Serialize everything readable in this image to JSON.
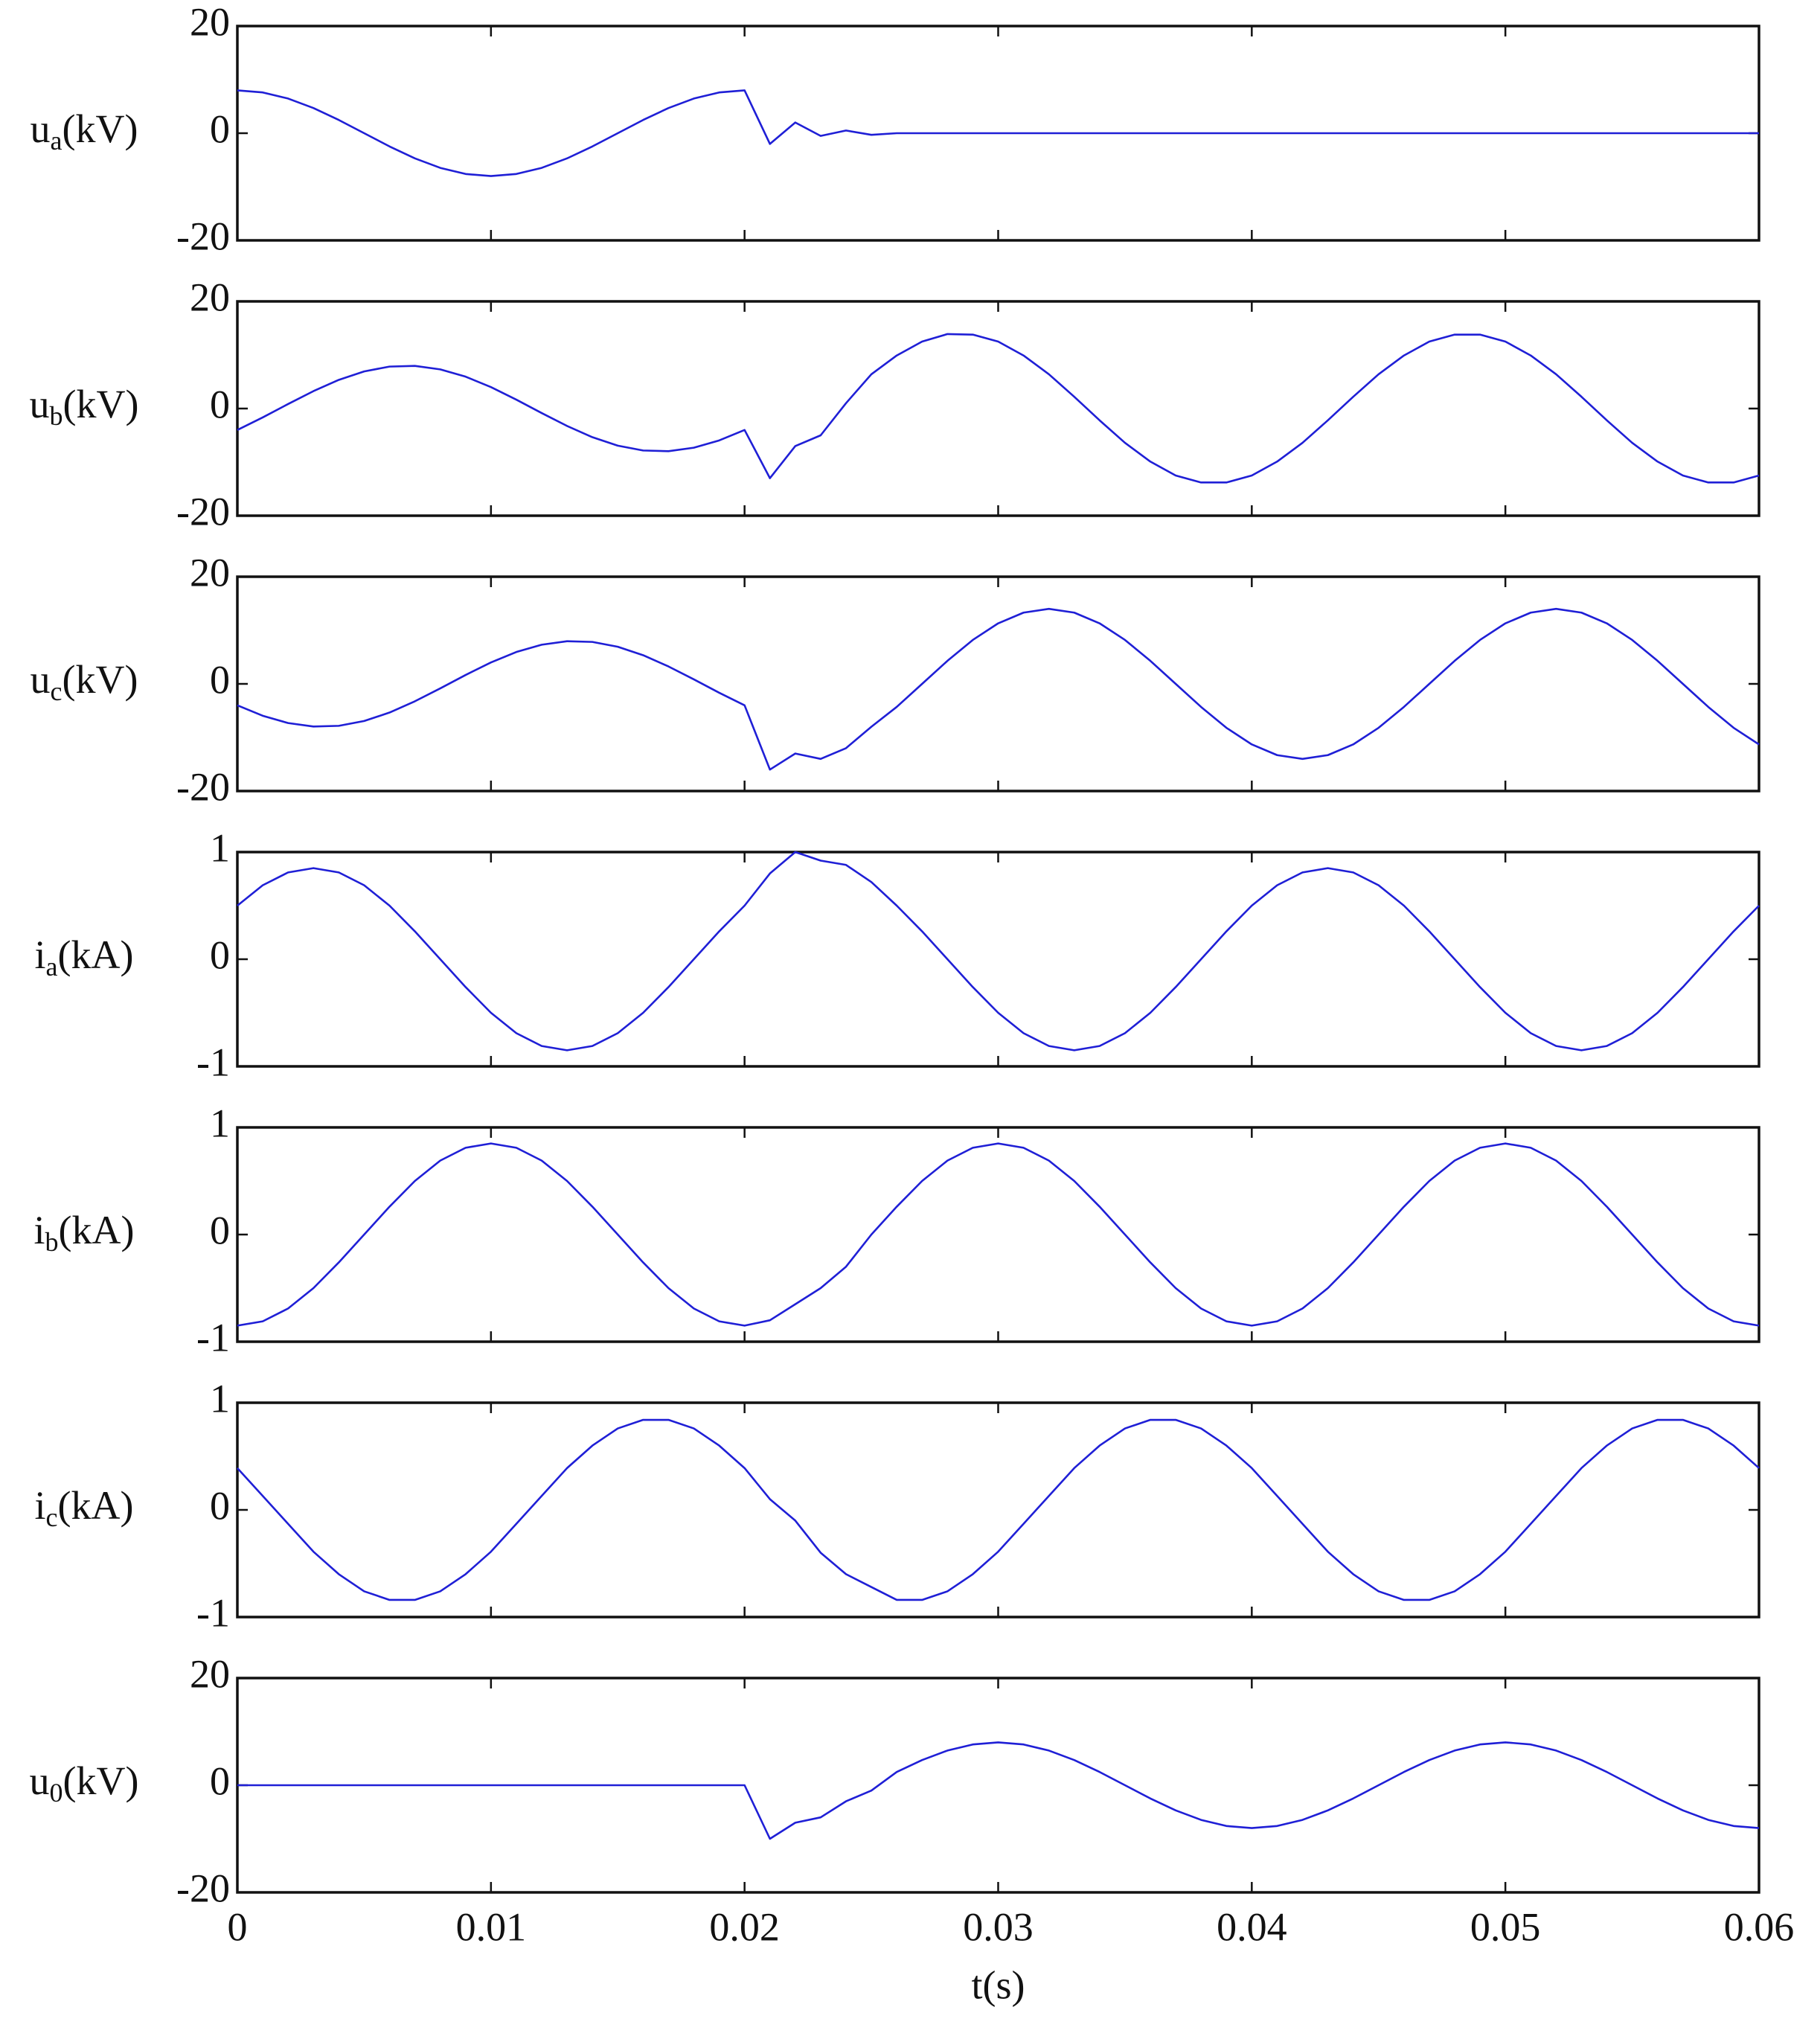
{
  "chart_data": [
    {
      "type": "line",
      "ylabel_parts": [
        "u",
        "a",
        "(kV)"
      ],
      "color": "#1f1fd6",
      "x": [
        0,
        0.001,
        0.002,
        0.003,
        0.004,
        0.005,
        0.006,
        0.007,
        0.008,
        0.009,
        0.01,
        0.011,
        0.012,
        0.013,
        0.014,
        0.015,
        0.016,
        0.017,
        0.018,
        0.019,
        0.02,
        0.021,
        0.022,
        0.023,
        0.024,
        0.025,
        0.026,
        0.027,
        0.028,
        0.029,
        0.03,
        0.031,
        0.032,
        0.033,
        0.034,
        0.035,
        0.036,
        0.037,
        0.038,
        0.039,
        0.04,
        0.041,
        0.042,
        0.043,
        0.044,
        0.045,
        0.046,
        0.047,
        0.048,
        0.049,
        0.05,
        0.051,
        0.052,
        0.053,
        0.054,
        0.055,
        0.056,
        0.057,
        0.058,
        0.059,
        0.06
      ],
      "values": [
        8,
        7.61,
        6.47,
        4.7,
        2.47,
        0,
        -2.47,
        -4.7,
        -6.47,
        -7.61,
        -8,
        -7.61,
        -6.47,
        -4.7,
        -2.47,
        0,
        2.47,
        4.7,
        6.47,
        7.61,
        8,
        -2,
        2,
        -0.5,
        0.5,
        -0.3,
        0,
        0,
        0,
        0,
        0,
        0,
        0,
        0,
        0,
        0,
        0,
        0,
        0,
        0,
        0,
        0,
        0,
        0,
        0,
        0,
        0,
        0,
        0,
        0,
        0,
        0,
        0,
        0,
        0,
        0,
        0,
        0,
        0,
        0,
        0
      ],
      "xlim": [
        0,
        0.06
      ],
      "ylim": [
        -20,
        20
      ],
      "xticks": [
        0,
        0.01,
        0.02,
        0.03,
        0.04,
        0.05,
        0.06
      ],
      "yticks": [
        -20,
        0,
        20
      ]
    },
    {
      "type": "line",
      "ylabel_parts": [
        "u",
        "b",
        "(kV)"
      ],
      "color": "#1f1fd6",
      "x": [
        0,
        0.001,
        0.002,
        0.003,
        0.004,
        0.005,
        0.006,
        0.007,
        0.008,
        0.009,
        0.01,
        0.011,
        0.012,
        0.013,
        0.014,
        0.015,
        0.016,
        0.017,
        0.018,
        0.019,
        0.02,
        0.021,
        0.022,
        0.023,
        0.024,
        0.025,
        0.026,
        0.027,
        0.028,
        0.029,
        0.03,
        0.031,
        0.032,
        0.033,
        0.034,
        0.035,
        0.036,
        0.037,
        0.038,
        0.039,
        0.04,
        0.041,
        0.042,
        0.043,
        0.044,
        0.045,
        0.046,
        0.047,
        0.048,
        0.049,
        0.05,
        0.051,
        0.052,
        0.053,
        0.054,
        0.055,
        0.056,
        0.057,
        0.058,
        0.059,
        0.06
      ],
      "values": [
        -4,
        -1.66,
        0.84,
        3.25,
        5.35,
        6.93,
        7.83,
        7.96,
        7.31,
        5.95,
        4,
        1.66,
        -0.84,
        -3.25,
        -5.35,
        -6.93,
        -7.83,
        -7.96,
        -7.31,
        -5.95,
        -4,
        -13,
        -7,
        -5,
        1,
        6.4,
        9.9,
        12.5,
        13.9,
        13.8,
        12.5,
        9.9,
        6.4,
        2.2,
        -2.2,
        -6.4,
        -9.9,
        -12.5,
        -13.8,
        -13.8,
        -12.5,
        -9.9,
        -6.4,
        -2.2,
        2.2,
        6.4,
        9.9,
        12.5,
        13.8,
        13.8,
        12.5,
        9.9,
        6.4,
        2.2,
        -2.2,
        -6.4,
        -9.9,
        -12.5,
        -13.8,
        -13.8,
        -12.5
      ],
      "xlim": [
        0,
        0.06
      ],
      "ylim": [
        -20,
        20
      ],
      "xticks": [
        0,
        0.01,
        0.02,
        0.03,
        0.04,
        0.05,
        0.06
      ],
      "yticks": [
        -20,
        0,
        20
      ]
    },
    {
      "type": "line",
      "ylabel_parts": [
        "u",
        "c",
        "(kV)"
      ],
      "color": "#1f1fd6",
      "x": [
        0,
        0.001,
        0.002,
        0.003,
        0.004,
        0.005,
        0.006,
        0.007,
        0.008,
        0.009,
        0.01,
        0.011,
        0.012,
        0.013,
        0.014,
        0.015,
        0.016,
        0.017,
        0.018,
        0.019,
        0.02,
        0.021,
        0.022,
        0.023,
        0.024,
        0.025,
        0.026,
        0.027,
        0.028,
        0.029,
        0.03,
        0.031,
        0.032,
        0.033,
        0.034,
        0.035,
        0.036,
        0.037,
        0.038,
        0.039,
        0.04,
        0.041,
        0.042,
        0.043,
        0.044,
        0.045,
        0.046,
        0.047,
        0.048,
        0.049,
        0.05,
        0.051,
        0.052,
        0.053,
        0.054,
        0.055,
        0.056,
        0.057,
        0.058,
        0.059,
        0.06
      ],
      "values": [
        -4,
        -5.95,
        -7.31,
        -7.96,
        -7.83,
        -6.93,
        -5.35,
        -3.25,
        -0.84,
        1.66,
        4,
        5.95,
        7.31,
        7.96,
        7.83,
        6.93,
        5.35,
        3.25,
        0.84,
        -1.66,
        -4,
        -16,
        -13,
        -14,
        -12,
        -8,
        -4.3,
        0,
        4.3,
        8.2,
        11.3,
        13.3,
        14,
        13.3,
        11.3,
        8.2,
        4.3,
        0,
        -4.3,
        -8.2,
        -11.3,
        -13.3,
        -14,
        -13.3,
        -11.3,
        -8.2,
        -4.3,
        0,
        4.3,
        8.2,
        11.3,
        13.3,
        14,
        13.3,
        11.3,
        8.2,
        4.3,
        0,
        -4.3,
        -8.2,
        -11.3
      ],
      "xlim": [
        0,
        0.06
      ],
      "ylim": [
        -20,
        20
      ],
      "xticks": [
        0,
        0.01,
        0.02,
        0.03,
        0.04,
        0.05,
        0.06
      ],
      "yticks": [
        -20,
        0,
        20
      ]
    },
    {
      "type": "line",
      "ylabel_parts": [
        "i",
        "a",
        "(kA)"
      ],
      "color": "#1f1fd6",
      "x": [
        0,
        0.001,
        0.002,
        0.003,
        0.004,
        0.005,
        0.006,
        0.007,
        0.008,
        0.009,
        0.01,
        0.011,
        0.012,
        0.013,
        0.014,
        0.015,
        0.016,
        0.017,
        0.018,
        0.019,
        0.02,
        0.021,
        0.022,
        0.023,
        0.024,
        0.025,
        0.026,
        0.027,
        0.028,
        0.029,
        0.03,
        0.031,
        0.032,
        0.033,
        0.034,
        0.035,
        0.036,
        0.037,
        0.038,
        0.039,
        0.04,
        0.041,
        0.042,
        0.043,
        0.044,
        0.045,
        0.046,
        0.047,
        0.048,
        0.049,
        0.05,
        0.051,
        0.052,
        0.053,
        0.054,
        0.055,
        0.056,
        0.057,
        0.058,
        0.059,
        0.06
      ],
      "values": [
        0.5,
        0.69,
        0.81,
        0.85,
        0.81,
        0.69,
        0.5,
        0.26,
        0,
        -0.26,
        -0.5,
        -0.69,
        -0.81,
        -0.85,
        -0.81,
        -0.69,
        -0.5,
        -0.26,
        0,
        0.26,
        0.5,
        0.8,
        1.0,
        0.92,
        0.88,
        0.72,
        0.5,
        0.26,
        0,
        -0.26,
        -0.5,
        -0.69,
        -0.81,
        -0.85,
        -0.81,
        -0.69,
        -0.5,
        -0.26,
        0,
        0.26,
        0.5,
        0.69,
        0.81,
        0.85,
        0.81,
        0.69,
        0.5,
        0.26,
        0,
        -0.26,
        -0.5,
        -0.69,
        -0.81,
        -0.85,
        -0.81,
        -0.69,
        -0.5,
        -0.26,
        0,
        0.26,
        0.5
      ],
      "xlim": [
        0,
        0.06
      ],
      "ylim": [
        -1,
        1
      ],
      "xticks": [
        0,
        0.01,
        0.02,
        0.03,
        0.04,
        0.05,
        0.06
      ],
      "yticks": [
        -1,
        0,
        1
      ]
    },
    {
      "type": "line",
      "ylabel_parts": [
        "i",
        "b",
        "(kA)"
      ],
      "color": "#1f1fd6",
      "x": [
        0,
        0.001,
        0.002,
        0.003,
        0.004,
        0.005,
        0.006,
        0.007,
        0.008,
        0.009,
        0.01,
        0.011,
        0.012,
        0.013,
        0.014,
        0.015,
        0.016,
        0.017,
        0.018,
        0.019,
        0.02,
        0.021,
        0.022,
        0.023,
        0.024,
        0.025,
        0.026,
        0.027,
        0.028,
        0.029,
        0.03,
        0.031,
        0.032,
        0.033,
        0.034,
        0.035,
        0.036,
        0.037,
        0.038,
        0.039,
        0.04,
        0.041,
        0.042,
        0.043,
        0.044,
        0.045,
        0.046,
        0.047,
        0.048,
        0.049,
        0.05,
        0.051,
        0.052,
        0.053,
        0.054,
        0.055,
        0.056,
        0.057,
        0.058,
        0.059,
        0.06
      ],
      "values": [
        -0.85,
        -0.81,
        -0.69,
        -0.5,
        -0.26,
        0,
        0.26,
        0.5,
        0.69,
        0.81,
        0.85,
        0.81,
        0.69,
        0.5,
        0.26,
        0,
        -0.26,
        -0.5,
        -0.69,
        -0.81,
        -0.85,
        -0.8,
        -0.65,
        -0.5,
        -0.3,
        0,
        0.26,
        0.5,
        0.69,
        0.81,
        0.85,
        0.81,
        0.69,
        0.5,
        0.26,
        0,
        -0.26,
        -0.5,
        -0.69,
        -0.81,
        -0.85,
        -0.81,
        -0.69,
        -0.5,
        -0.26,
        0,
        0.26,
        0.5,
        0.69,
        0.81,
        0.85,
        0.81,
        0.69,
        0.5,
        0.26,
        0,
        -0.26,
        -0.5,
        -0.69,
        -0.81,
        -0.85
      ],
      "xlim": [
        0,
        0.06
      ],
      "ylim": [
        -1,
        1
      ],
      "xticks": [
        0,
        0.01,
        0.02,
        0.03,
        0.04,
        0.05,
        0.06
      ],
      "yticks": [
        -1,
        0,
        1
      ]
    },
    {
      "type": "line",
      "ylabel_parts": [
        "i",
        "c",
        "(kA)"
      ],
      "color": "#1f1fd6",
      "x": [
        0,
        0.001,
        0.002,
        0.003,
        0.004,
        0.005,
        0.006,
        0.007,
        0.008,
        0.009,
        0.01,
        0.011,
        0.012,
        0.013,
        0.014,
        0.015,
        0.016,
        0.017,
        0.018,
        0.019,
        0.02,
        0.021,
        0.022,
        0.023,
        0.024,
        0.025,
        0.026,
        0.027,
        0.028,
        0.029,
        0.03,
        0.031,
        0.032,
        0.033,
        0.034,
        0.035,
        0.036,
        0.037,
        0.038,
        0.039,
        0.04,
        0.041,
        0.042,
        0.043,
        0.044,
        0.045,
        0.046,
        0.047,
        0.048,
        0.049,
        0.05,
        0.051,
        0.052,
        0.053,
        0.054,
        0.055,
        0.056,
        0.057,
        0.058,
        0.059,
        0.06
      ],
      "values": [
        0.39,
        0.13,
        -0.13,
        -0.39,
        -0.6,
        -0.76,
        -0.84,
        -0.84,
        -0.76,
        -0.6,
        -0.39,
        -0.13,
        0.13,
        0.39,
        0.6,
        0.76,
        0.84,
        0.84,
        0.76,
        0.6,
        0.39,
        0.1,
        -0.1,
        -0.4,
        -0.6,
        -0.72,
        -0.84,
        -0.84,
        -0.76,
        -0.6,
        -0.39,
        -0.13,
        0.13,
        0.39,
        0.6,
        0.76,
        0.84,
        0.84,
        0.76,
        0.6,
        0.39,
        0.13,
        -0.13,
        -0.39,
        -0.6,
        -0.76,
        -0.84,
        -0.84,
        -0.76,
        -0.6,
        -0.39,
        -0.13,
        0.13,
        0.39,
        0.6,
        0.76,
        0.84,
        0.84,
        0.76,
        0.6,
        0.39
      ],
      "xlim": [
        0,
        0.06
      ],
      "ylim": [
        -1,
        1
      ],
      "xticks": [
        0,
        0.01,
        0.02,
        0.03,
        0.04,
        0.05,
        0.06
      ],
      "yticks": [
        -1,
        0,
        1
      ]
    },
    {
      "type": "line",
      "ylabel_parts": [
        "u",
        "0",
        "(kV)"
      ],
      "color": "#1f1fd6",
      "xlabel": "t(s)",
      "xticklabels": true,
      "x": [
        0,
        0.001,
        0.002,
        0.003,
        0.004,
        0.005,
        0.006,
        0.007,
        0.008,
        0.009,
        0.01,
        0.011,
        0.012,
        0.013,
        0.014,
        0.015,
        0.016,
        0.017,
        0.018,
        0.019,
        0.02,
        0.021,
        0.022,
        0.023,
        0.024,
        0.025,
        0.026,
        0.027,
        0.028,
        0.029,
        0.03,
        0.031,
        0.032,
        0.033,
        0.034,
        0.035,
        0.036,
        0.037,
        0.038,
        0.039,
        0.04,
        0.041,
        0.042,
        0.043,
        0.044,
        0.045,
        0.046,
        0.047,
        0.048,
        0.049,
        0.05,
        0.051,
        0.052,
        0.053,
        0.054,
        0.055,
        0.056,
        0.057,
        0.058,
        0.059,
        0.06
      ],
      "values": [
        0,
        0,
        0,
        0,
        0,
        0,
        0,
        0,
        0,
        0,
        0,
        0,
        0,
        0,
        0,
        0,
        0,
        0,
        0,
        0,
        0,
        -10,
        -7,
        -6,
        -3,
        -1,
        2.47,
        4.7,
        6.47,
        7.61,
        8,
        7.61,
        6.47,
        4.7,
        2.47,
        0,
        -2.47,
        -4.7,
        -6.47,
        -7.61,
        -8,
        -7.61,
        -6.47,
        -4.7,
        -2.47,
        0,
        2.47,
        4.7,
        6.47,
        7.61,
        8,
        7.61,
        6.47,
        4.7,
        2.47,
        0,
        -2.47,
        -4.7,
        -6.47,
        -7.61,
        -8
      ],
      "xlim": [
        0,
        0.06
      ],
      "ylim": [
        -20,
        20
      ],
      "xticks": [
        0,
        0.01,
        0.02,
        0.03,
        0.04,
        0.05,
        0.06
      ],
      "yticks": [
        -20,
        0,
        20
      ]
    }
  ]
}
